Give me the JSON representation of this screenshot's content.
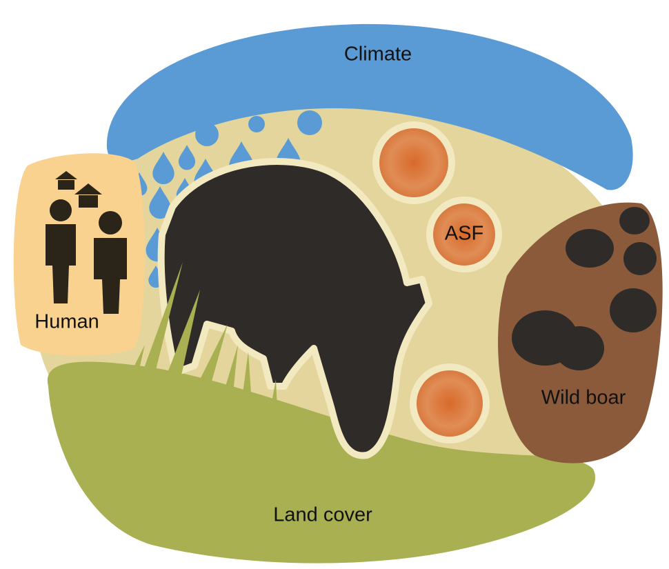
{
  "labels": {
    "climate": "Climate",
    "human": "Human",
    "asf": "ASF",
    "wild_boar": "Wild boar",
    "land_cover": "Land cover"
  }
}
